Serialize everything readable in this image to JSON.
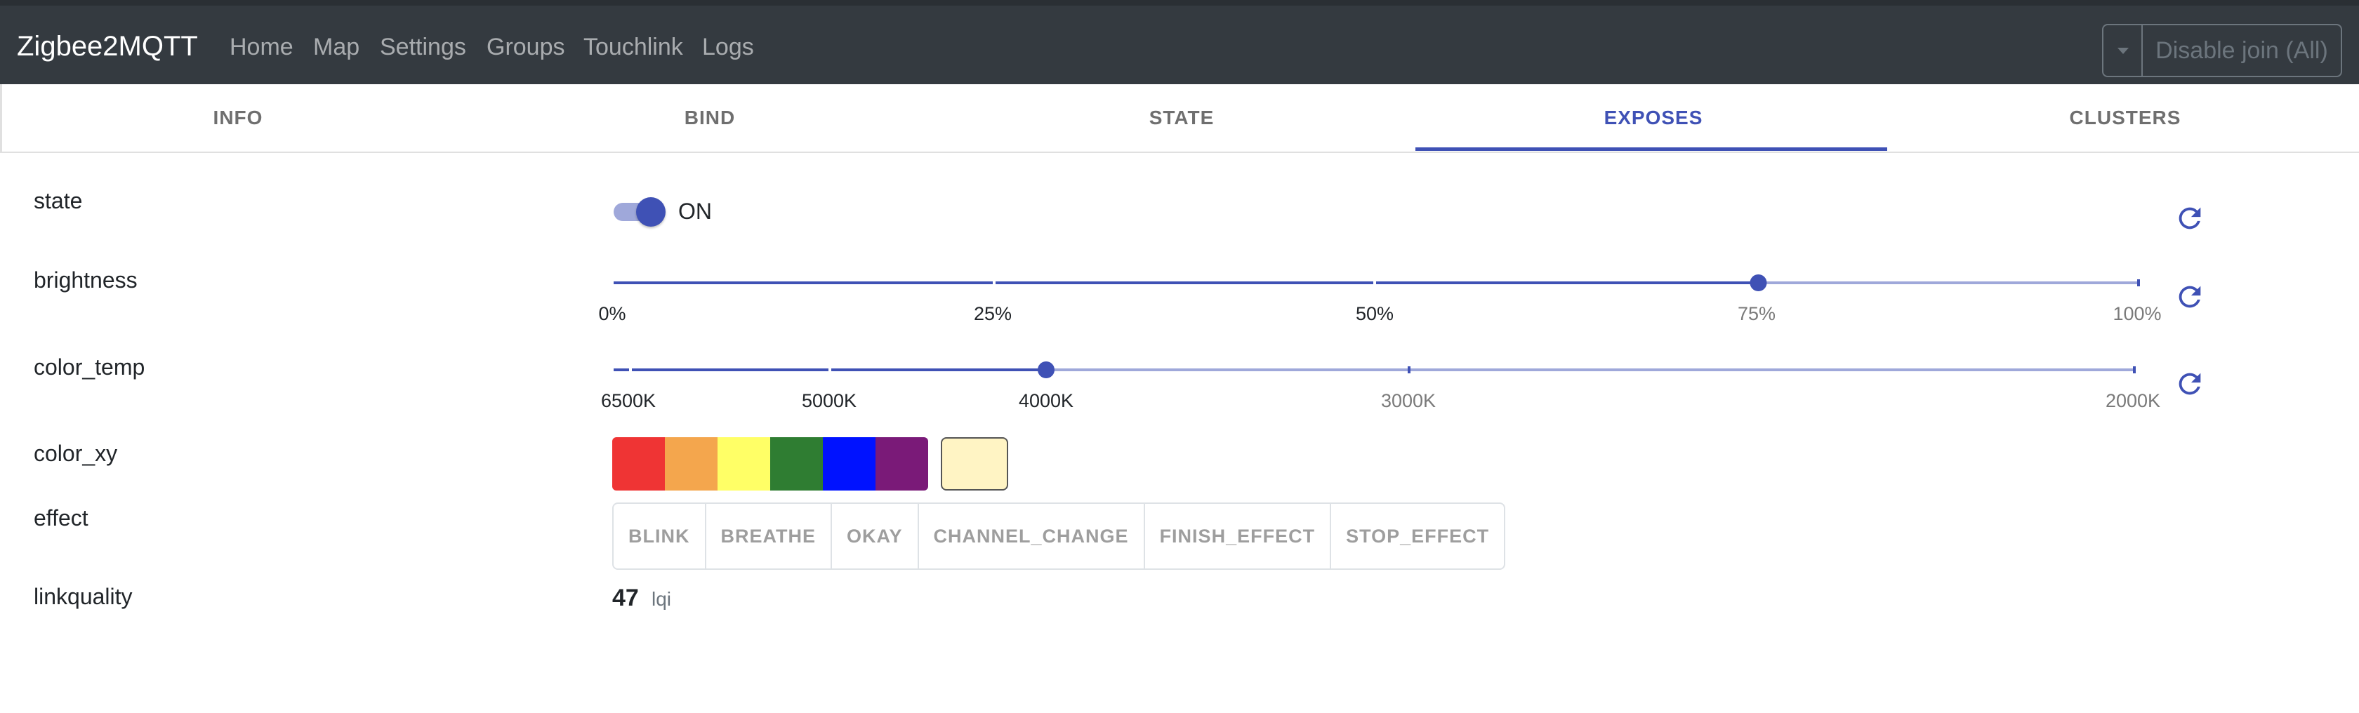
{
  "app": {
    "brand": "Zigbee2MQTT"
  },
  "nav": {
    "home": "Home",
    "map": "Map",
    "settings": "Settings",
    "groups": "Groups",
    "touchlink": "Touchlink",
    "logs": "Logs"
  },
  "join_button": {
    "label": "Disable join (All)"
  },
  "tabs": {
    "info": "INFO",
    "bind": "BIND",
    "state": "STATE",
    "exposes": "EXPOSES",
    "clusters": "CLUSTERS",
    "active": "EXPOSES"
  },
  "exposes": {
    "state": {
      "label": "state",
      "value": "ON",
      "on": true,
      "icon": "refresh-icon"
    },
    "brightness": {
      "label": "brightness",
      "value_percent": 75,
      "marks": [
        "0%",
        "25%",
        "50%",
        "75%",
        "100%"
      ],
      "icon": "refresh-icon"
    },
    "color_temp": {
      "label": "color_temp",
      "value": "4000K",
      "marks": [
        "6500K",
        "5000K",
        "4000K",
        "3000K",
        "2000K"
      ],
      "icon": "refresh-icon"
    },
    "color_xy": {
      "label": "color_xy",
      "presets": [
        "#ef3434",
        "#f4a64d",
        "#ffff66",
        "#2f7d32",
        "#0012ff",
        "#7a1a78"
      ],
      "current": "#fff4c4"
    },
    "effect": {
      "label": "effect",
      "options": [
        "BLINK",
        "BREATHE",
        "OKAY",
        "CHANNEL_CHANGE",
        "FINISH_EFFECT",
        "STOP_EFFECT"
      ]
    },
    "linkquality": {
      "label": "linkquality",
      "value": "47",
      "unit": "lqi"
    }
  },
  "colors": {
    "accent": "#3f51b5",
    "navbar": "#343a40"
  }
}
